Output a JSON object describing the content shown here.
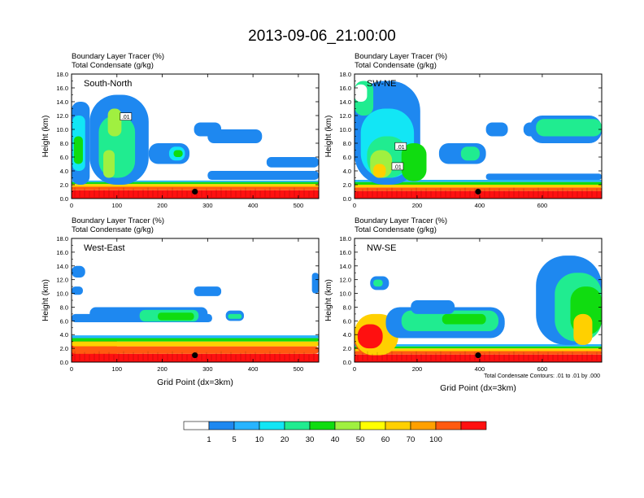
{
  "title": "2013-09-06_21:00:00",
  "colors": {
    "scale": [
      "#ffffff",
      "#1e88f0",
      "#28b4ff",
      "#12e6f5",
      "#20ec90",
      "#10dc10",
      "#a0f040",
      "#ffff00",
      "#ffd000",
      "#ffa000",
      "#ff5a10",
      "#ff1010"
    ],
    "contour": "#000000",
    "marker": "#000000"
  },
  "chart_data": [
    {
      "type": "heatmap",
      "name": "South-North",
      "label": "South-North",
      "left_title_1": "Boundary Layer Tracer   (%)",
      "left_title_2": "Total Condensate   (g/kg)",
      "ylabel": "Height (km)",
      "xlabel": "",
      "ylim": [
        0,
        18
      ],
      "xlim": [
        0,
        545
      ],
      "yticks": [
        "0.0",
        "2.0",
        "4.0",
        "6.0",
        "8.0",
        "10.0",
        "12.0",
        "14.0",
        "16.0",
        "18.0"
      ],
      "xticks": [
        0,
        100,
        200,
        300,
        400,
        500
      ],
      "contour_labels": [
        {
          "text": ".01",
          "x": 118,
          "y": 11.8
        }
      ],
      "marker": {
        "x": 272,
        "y": 1.0
      },
      "features": [
        {
          "x": [
            0,
            545
          ],
          "y": [
            0,
            1.2
          ],
          "level": 11
        },
        {
          "x": [
            0,
            545
          ],
          "y": [
            1.2,
            1.7
          ],
          "level": 10
        },
        {
          "x": [
            0,
            545
          ],
          "y": [
            1.7,
            2.1
          ],
          "level": 8
        },
        {
          "x": [
            0,
            545
          ],
          "y": [
            2.1,
            2.4
          ],
          "level": 5
        },
        {
          "x": [
            0,
            545
          ],
          "y": [
            2.4,
            2.6
          ],
          "level": 2
        },
        {
          "x": [
            0,
            40
          ],
          "y": [
            2,
            14
          ],
          "level": 1
        },
        {
          "x": [
            2,
            30
          ],
          "y": [
            4,
            12
          ],
          "level": 3
        },
        {
          "x": [
            5,
            25
          ],
          "y": [
            5,
            9
          ],
          "level": 5
        },
        {
          "x": [
            40,
            170
          ],
          "y": [
            2,
            15
          ],
          "level": 1
        },
        {
          "x": [
            60,
            140
          ],
          "y": [
            3,
            12
          ],
          "level": 4
        },
        {
          "x": [
            80,
            110
          ],
          "y": [
            9,
            13
          ],
          "level": 6
        },
        {
          "x": [
            70,
            95
          ],
          "y": [
            3,
            7
          ],
          "level": 6
        },
        {
          "x": [
            170,
            260
          ],
          "y": [
            5,
            8
          ],
          "level": 1
        },
        {
          "x": [
            215,
            250
          ],
          "y": [
            5.5,
            7.5
          ],
          "level": 3
        },
        {
          "x": [
            225,
            245
          ],
          "y": [
            6,
            7
          ],
          "level": 5
        },
        {
          "x": [
            270,
            330
          ],
          "y": [
            9,
            11
          ],
          "level": 1
        },
        {
          "x": [
            300,
            420
          ],
          "y": [
            8,
            10
          ],
          "level": 1
        },
        {
          "x": [
            300,
            545
          ],
          "y": [
            2.7,
            4.0
          ],
          "level": 1
        },
        {
          "x": [
            430,
            545
          ],
          "y": [
            4.5,
            6.0
          ],
          "level": 1
        }
      ]
    },
    {
      "type": "heatmap",
      "name": "SW-NE",
      "label": "SW-NE",
      "left_title_1": "Boundary Layer Tracer   (%)",
      "left_title_2": "Total Condensate   (g/kg)",
      "ylabel": "Height (km)",
      "xlabel": "",
      "ylim": [
        0,
        18
      ],
      "xlim": [
        0,
        790
      ],
      "yticks": [
        "0.0",
        "2.0",
        "4.0",
        "6.0",
        "8.0",
        "10.0",
        "12.0",
        "14.0",
        "16.0",
        "18.0"
      ],
      "xticks": [
        0,
        200,
        400,
        600
      ],
      "contour_labels": [
        {
          "text": ".01",
          "x": 145,
          "y": 7.5
        },
        {
          "text": ".01",
          "x": 135,
          "y": 4.6
        }
      ],
      "marker": {
        "x": 395,
        "y": 1.0
      },
      "features": [
        {
          "x": [
            0,
            790
          ],
          "y": [
            0,
            1.1
          ],
          "level": 11
        },
        {
          "x": [
            0,
            790
          ],
          "y": [
            1.1,
            1.6
          ],
          "level": 10
        },
        {
          "x": [
            0,
            790
          ],
          "y": [
            1.6,
            2.0
          ],
          "level": 8
        },
        {
          "x": [
            0,
            790
          ],
          "y": [
            2.0,
            2.4
          ],
          "level": 5
        },
        {
          "x": [
            0,
            790
          ],
          "y": [
            2.4,
            2.7
          ],
          "level": 2
        },
        {
          "x": [
            0,
            210
          ],
          "y": [
            2,
            17
          ],
          "level": 1
        },
        {
          "x": [
            0,
            60
          ],
          "y": [
            12,
            17
          ],
          "level": 4
        },
        {
          "x": [
            0,
            40
          ],
          "y": [
            14,
            16.5
          ],
          "level": 0
        },
        {
          "x": [
            20,
            190
          ],
          "y": [
            3,
            13
          ],
          "level": 3
        },
        {
          "x": [
            40,
            170
          ],
          "y": [
            3,
            9
          ],
          "level": 4
        },
        {
          "x": [
            50,
            120
          ],
          "y": [
            3,
            7
          ],
          "level": 6
        },
        {
          "x": [
            60,
            100
          ],
          "y": [
            3,
            5
          ],
          "level": 8
        },
        {
          "x": [
            150,
            230
          ],
          "y": [
            2.5,
            8
          ],
          "level": 5
        },
        {
          "x": [
            270,
            420
          ],
          "y": [
            5,
            8
          ],
          "level": 1
        },
        {
          "x": [
            340,
            400
          ],
          "y": [
            5.5,
            7.5
          ],
          "level": 4
        },
        {
          "x": [
            420,
            490
          ],
          "y": [
            9,
            11
          ],
          "level": 1
        },
        {
          "x": [
            540,
            600
          ],
          "y": [
            9,
            11
          ],
          "level": 1
        },
        {
          "x": [
            560,
            790
          ],
          "y": [
            8,
            12
          ],
          "level": 1
        },
        {
          "x": [
            580,
            790
          ],
          "y": [
            9,
            11.5
          ],
          "level": 4
        },
        {
          "x": [
            420,
            790
          ],
          "y": [
            2.7,
            3.6
          ],
          "level": 1
        }
      ]
    },
    {
      "type": "heatmap",
      "name": "West-East",
      "label": "West-East",
      "left_title_1": "Boundary Layer Tracer   (%)",
      "left_title_2": "Total Condensate   (g/kg)",
      "ylabel": "Height (km)",
      "xlabel": "Grid Point (dx=3km)",
      "ylim": [
        0,
        18
      ],
      "xlim": [
        0,
        545
      ],
      "yticks": [
        "0.0",
        "2.0",
        "4.0",
        "6.0",
        "8.0",
        "10.0",
        "12.0",
        "14.0",
        "16.0",
        "18.0"
      ],
      "xticks": [
        0,
        100,
        200,
        300,
        400,
        500
      ],
      "contour_labels": [],
      "marker": {
        "x": 272,
        "y": 1.0
      },
      "features": [
        {
          "x": [
            0,
            545
          ],
          "y": [
            0,
            1.2
          ],
          "level": 11
        },
        {
          "x": [
            0,
            100
          ],
          "y": [
            0,
            3.5
          ],
          "level": 11
        },
        {
          "x": [
            0,
            545
          ],
          "y": [
            1.2,
            2.3
          ],
          "level": 10
        },
        {
          "x": [
            0,
            545
          ],
          "y": [
            2.3,
            3.0
          ],
          "level": 8
        },
        {
          "x": [
            0,
            545
          ],
          "y": [
            3.0,
            3.5
          ],
          "level": 5
        },
        {
          "x": [
            0,
            545
          ],
          "y": [
            3.5,
            3.9
          ],
          "level": 2
        },
        {
          "x": [
            0,
            310
          ],
          "y": [
            5.8,
            7.0
          ],
          "level": 1
        },
        {
          "x": [
            40,
            300
          ],
          "y": [
            6.0,
            8.0
          ],
          "level": 1
        },
        {
          "x": [
            150,
            280
          ],
          "y": [
            5.9,
            7.6
          ],
          "level": 4
        },
        {
          "x": [
            190,
            270
          ],
          "y": [
            6.1,
            7.2
          ],
          "level": 5
        },
        {
          "x": [
            0,
            30
          ],
          "y": [
            12.3,
            14.0
          ],
          "level": 1
        },
        {
          "x": [
            0,
            25
          ],
          "y": [
            9.8,
            11.0
          ],
          "level": 1
        },
        {
          "x": [
            270,
            330
          ],
          "y": [
            9.6,
            11.0
          ],
          "level": 1
        },
        {
          "x": [
            340,
            380
          ],
          "y": [
            6.0,
            7.5
          ],
          "level": 1
        },
        {
          "x": [
            345,
            375
          ],
          "y": [
            6.3,
            7.0
          ],
          "level": 4
        },
        {
          "x": [
            530,
            545
          ],
          "y": [
            10,
            13
          ],
          "level": 1
        }
      ]
    },
    {
      "type": "heatmap",
      "name": "NW-SE",
      "label": "NW-SE",
      "left_title_1": "Boundary Layer Tracer   (%)",
      "left_title_2": "Total Condensate   (g/kg)",
      "ylabel": "Height (km)",
      "xlabel": "Grid Point (dx=3km)",
      "ylim": [
        0,
        18
      ],
      "xlim": [
        0,
        790
      ],
      "yticks": [
        "0.0",
        "2.0",
        "4.0",
        "6.0",
        "8.0",
        "10.0",
        "12.0",
        "14.0",
        "16.0",
        "18.0"
      ],
      "xticks": [
        0,
        200,
        400,
        600
      ],
      "contour_labels": [],
      "footnote": "Total Condensate Contours: .01 to .01 by .000",
      "marker": {
        "x": 395,
        "y": 1.0
      },
      "features": [
        {
          "x": [
            0,
            790
          ],
          "y": [
            0,
            1.1
          ],
          "level": 11
        },
        {
          "x": [
            0,
            790
          ],
          "y": [
            1.1,
            1.6
          ],
          "level": 10
        },
        {
          "x": [
            0,
            790
          ],
          "y": [
            1.6,
            2.0
          ],
          "level": 8
        },
        {
          "x": [
            0,
            790
          ],
          "y": [
            2.0,
            2.3
          ],
          "level": 5
        },
        {
          "x": [
            0,
            790
          ],
          "y": [
            2.3,
            2.6
          ],
          "level": 2
        },
        {
          "x": [
            0,
            120
          ],
          "y": [
            1,
            6
          ],
          "level": 10
        },
        {
          "x": [
            0,
            140
          ],
          "y": [
            1,
            7
          ],
          "level": 8
        },
        {
          "x": [
            10,
            90
          ],
          "y": [
            2,
            5.5
          ],
          "level": 11
        },
        {
          "x": [
            100,
            480
          ],
          "y": [
            3.5,
            8
          ],
          "level": 1
        },
        {
          "x": [
            150,
            460
          ],
          "y": [
            4.5,
            7.5
          ],
          "level": 4
        },
        {
          "x": [
            280,
            420
          ],
          "y": [
            5.5,
            7.0
          ],
          "level": 5
        },
        {
          "x": [
            180,
            320
          ],
          "y": [
            7,
            9
          ],
          "level": 1
        },
        {
          "x": [
            50,
            110
          ],
          "y": [
            10.5,
            12.5
          ],
          "level": 1
        },
        {
          "x": [
            60,
            90
          ],
          "y": [
            11,
            12
          ],
          "level": 4
        },
        {
          "x": [
            580,
            790
          ],
          "y": [
            2.5,
            15.5
          ],
          "level": 1
        },
        {
          "x": [
            640,
            790
          ],
          "y": [
            3,
            13
          ],
          "level": 4
        },
        {
          "x": [
            690,
            790
          ],
          "y": [
            4,
            11
          ],
          "level": 5
        },
        {
          "x": [
            700,
            760
          ],
          "y": [
            2.5,
            7
          ],
          "level": 8
        }
      ]
    }
  ],
  "colorbar": {
    "labels": [
      "1",
      "5",
      "10",
      "20",
      "30",
      "40",
      "50",
      "60",
      "70",
      "100"
    ]
  }
}
